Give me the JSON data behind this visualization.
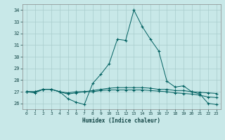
{
  "xlabel": "Humidex (Indice chaleur)",
  "xlim": [
    -0.5,
    23.5
  ],
  "ylim": [
    25.5,
    34.5
  ],
  "yticks": [
    26,
    27,
    28,
    29,
    30,
    31,
    32,
    33,
    34
  ],
  "xticks": [
    0,
    1,
    2,
    3,
    4,
    5,
    6,
    7,
    8,
    9,
    10,
    11,
    12,
    13,
    14,
    15,
    16,
    17,
    18,
    19,
    20,
    21,
    22,
    23
  ],
  "bg_color": "#c8e8e8",
  "grid_color": "#a8cccc",
  "line_color": "#006060",
  "s1": [
    27.0,
    26.9,
    27.2,
    27.2,
    27.0,
    26.4,
    26.1,
    25.9,
    27.7,
    28.5,
    29.4,
    31.5,
    31.4,
    34.0,
    32.6,
    31.5,
    30.5,
    27.9,
    27.4,
    27.5,
    27.0,
    26.8,
    26.0,
    25.9
  ],
  "s2": [
    27.0,
    27.0,
    27.2,
    27.2,
    27.0,
    26.9,
    27.0,
    27.0,
    27.1,
    27.2,
    27.3,
    27.35,
    27.35,
    27.35,
    27.35,
    27.3,
    27.2,
    27.2,
    27.1,
    27.1,
    27.0,
    26.95,
    26.9,
    26.85
  ],
  "s3": [
    27.0,
    27.0,
    27.2,
    27.2,
    27.0,
    26.8,
    26.9,
    27.0,
    27.0,
    27.1,
    27.15,
    27.15,
    27.15,
    27.15,
    27.15,
    27.1,
    27.05,
    27.0,
    26.9,
    26.85,
    26.8,
    26.7,
    26.55,
    26.5
  ]
}
